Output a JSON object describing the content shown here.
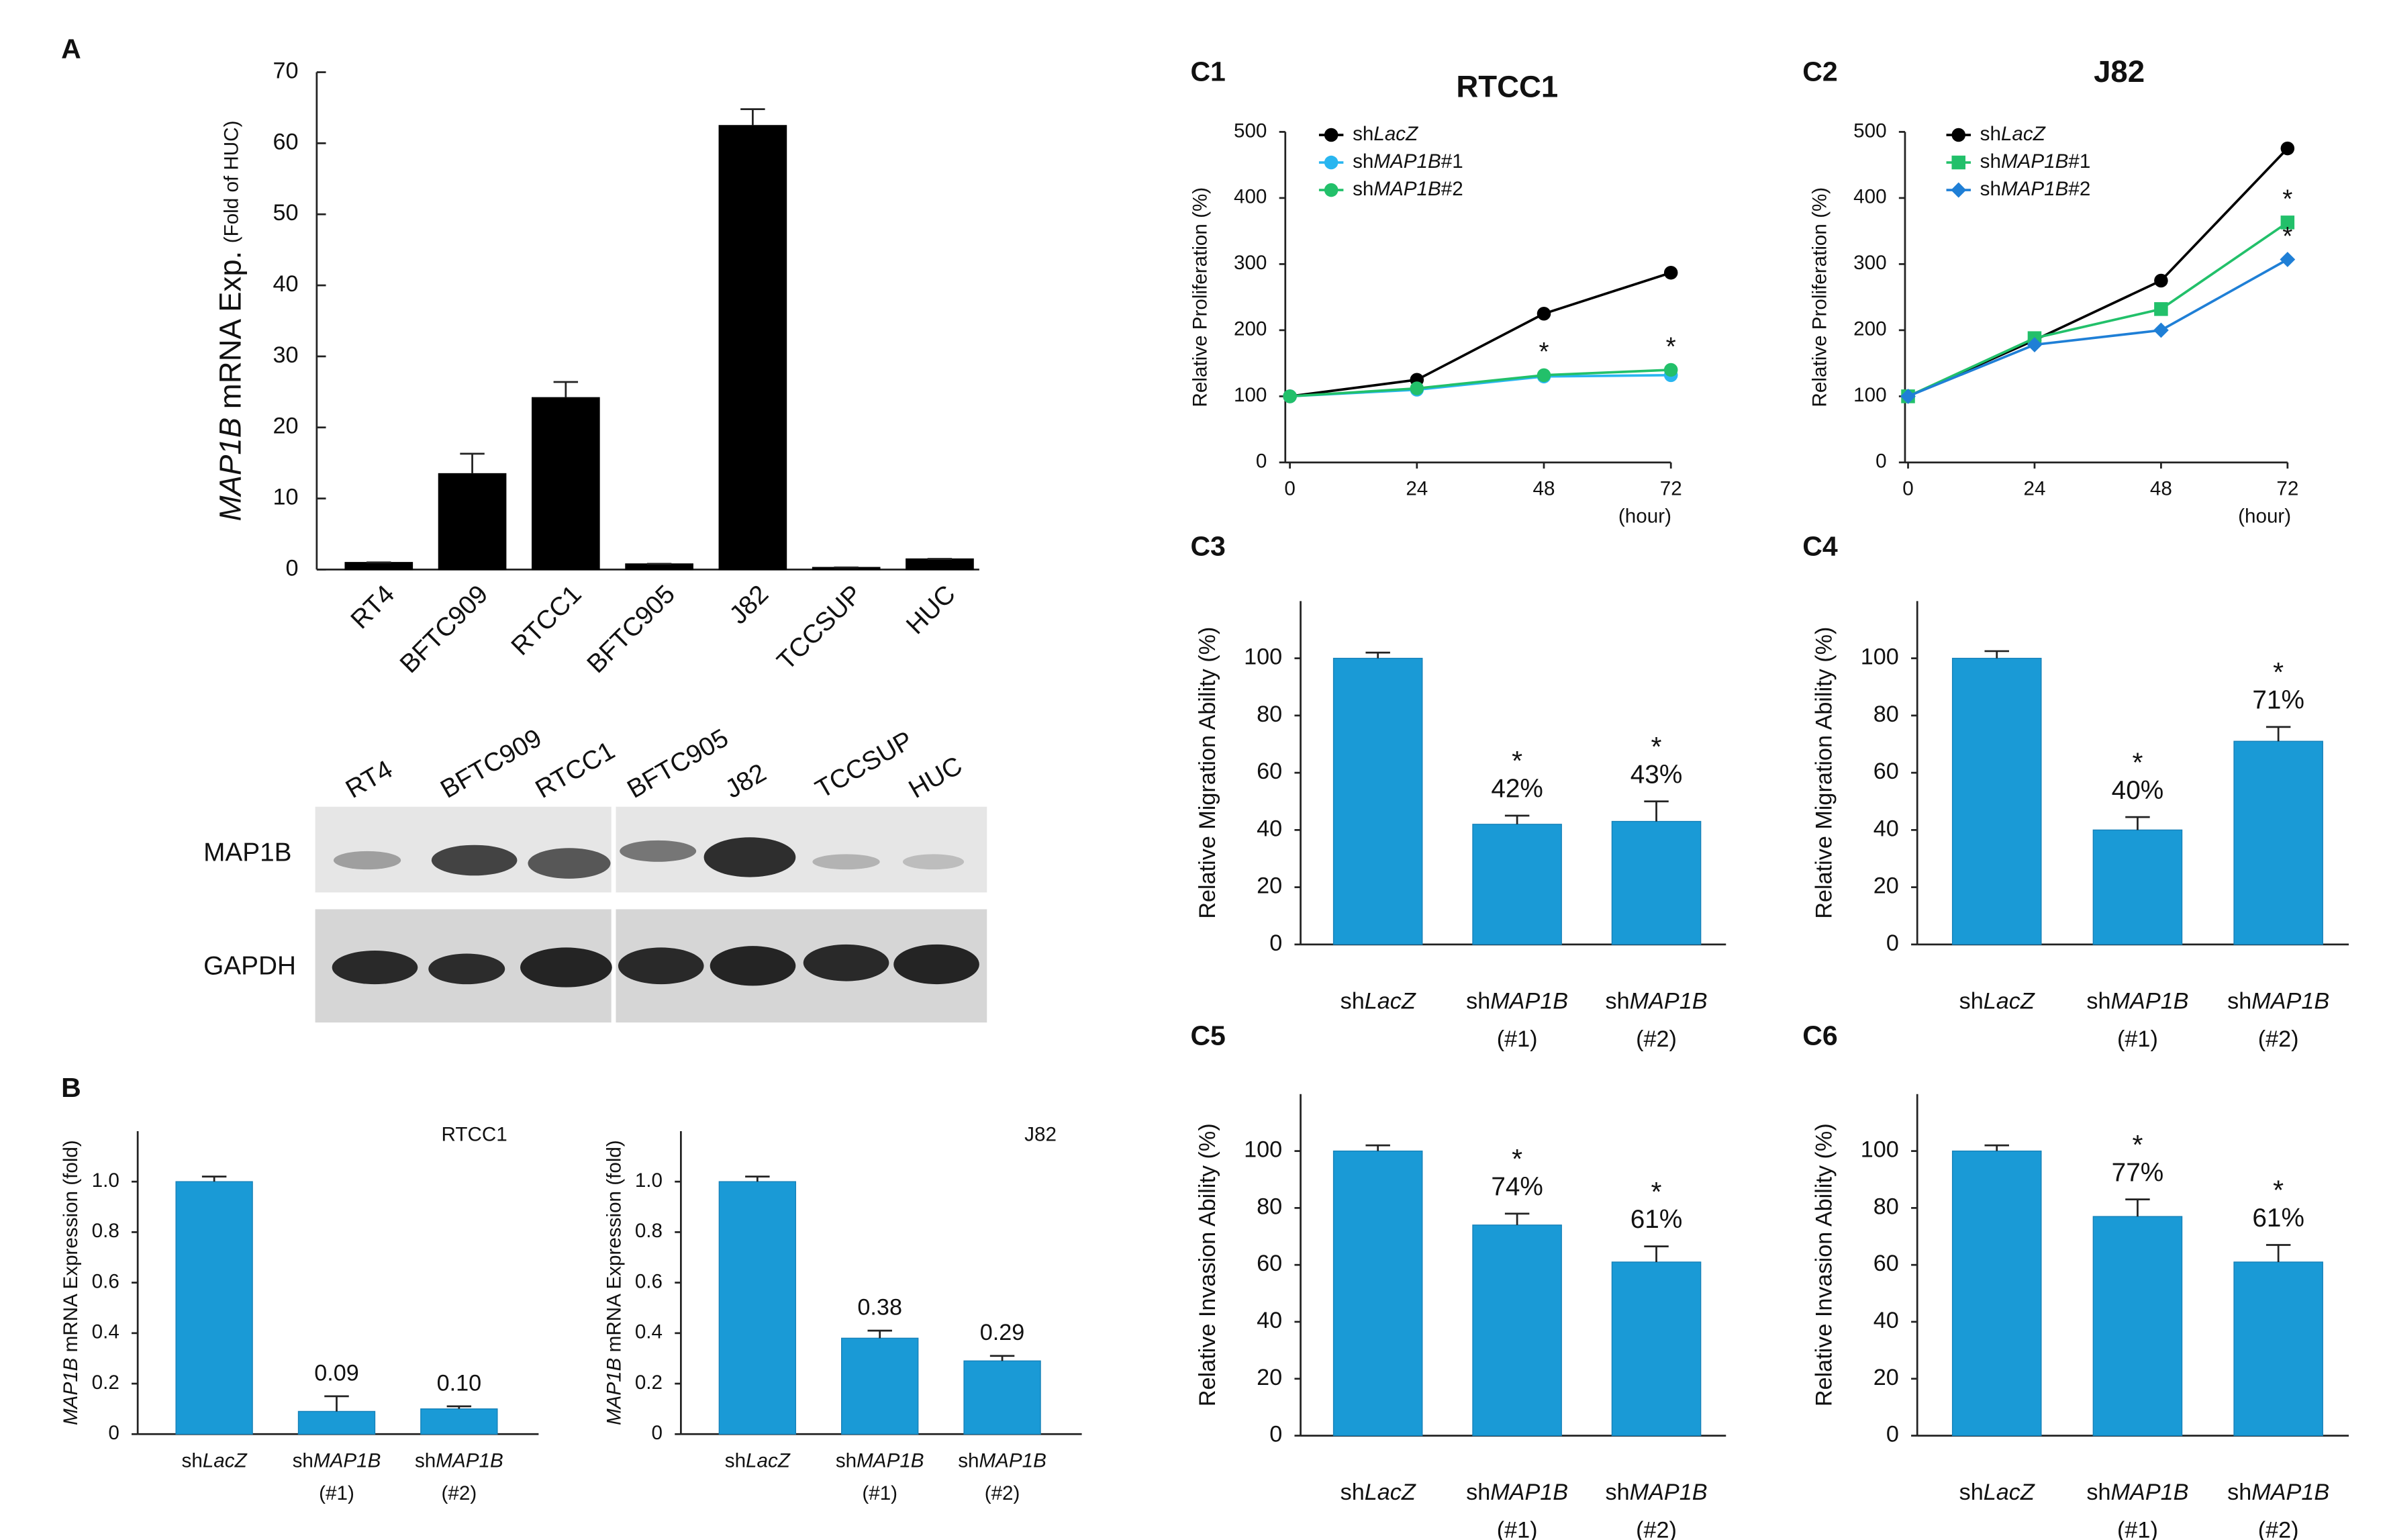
{
  "italic": [
    "MAP1B",
    "LacZ"
  ],
  "blot": {
    "lanes": [
      "RT4",
      "BFTC909",
      "RTCC1",
      "BFTC905",
      "J82",
      "TCCSUP",
      "HUC"
    ],
    "rows": [
      "MAP1B",
      "GAPDH"
    ]
  },
  "chart_data": [
    {
      "type": "bar",
      "panel": "A",
      "ylabel": "MAP1B mRNA Exp.",
      "ylabel_note": "(Fold of HUC)",
      "categories": [
        "RT4",
        "BFTC909",
        "RTCC1",
        "BFTC905",
        "J82",
        "TCCSUP",
        "HUC"
      ],
      "values": [
        1,
        13.5,
        24.2,
        0.8,
        62.5,
        0.3,
        1.5
      ],
      "errors": [
        0,
        2.8,
        2.2,
        0,
        2.3,
        0,
        0
      ],
      "color": "#000000",
      "ylim": [
        0,
        70
      ],
      "yticks": [
        0,
        10,
        20,
        30,
        40,
        50,
        60,
        70
      ]
    },
    {
      "type": "bar",
      "panel": "B",
      "title": "RTCC1",
      "ylabel": "MAP1B mRNA Expression (fold)",
      "categories": [
        "shLacZ",
        "shMAP1B (#1)",
        "shMAP1B (#2)"
      ],
      "values": [
        1.0,
        0.09,
        0.1
      ],
      "errors": [
        0.02,
        0.06,
        0.01
      ],
      "value_labels": [
        null,
        "0.09",
        "0.10"
      ],
      "color": "#1a9ad6",
      "ylim": [
        0,
        1.2
      ],
      "yticks": [
        0,
        0.2,
        0.4,
        0.6,
        0.8,
        {
          "value": 1,
          "label": "1.0"
        }
      ]
    },
    {
      "type": "bar",
      "title": "J82",
      "ylabel": "MAP1B mRNA Expression (fold)",
      "categories": [
        "shLacZ",
        "shMAP1B (#1)",
        "shMAP1B (#2)"
      ],
      "values": [
        1.0,
        0.38,
        0.29
      ],
      "errors": [
        0.02,
        0.03,
        0.02
      ],
      "value_labels": [
        null,
        "0.38",
        "0.29"
      ],
      "color": "#1a9ad6",
      "ylim": [
        0,
        1.2
      ],
      "yticks": [
        0,
        0.2,
        0.4,
        0.6,
        0.8,
        {
          "value": 1,
          "label": "1.0"
        }
      ]
    },
    {
      "type": "line",
      "panel": "C1",
      "title": "RTCC1",
      "ylabel": "Relative Proliferation (%)",
      "xlabel": "(hour)",
      "x": [
        0,
        24,
        48,
        72
      ],
      "xlim": [
        0,
        72
      ],
      "xticks": [
        0,
        24,
        48,
        72
      ],
      "ylim": [
        0,
        500
      ],
      "yticks": [
        0,
        100,
        200,
        300,
        400,
        500
      ],
      "series": [
        {
          "name": "shLacZ",
          "color": "#000000",
          "marker": "circle",
          "values": [
            100,
            125,
            225,
            287
          ]
        },
        {
          "name": "shMAP1B#1",
          "color": "#29b6f0",
          "marker": "circle",
          "values": [
            100,
            110,
            130,
            132
          ]
        },
        {
          "name": "shMAP1B#2",
          "color": "#22c06a",
          "marker": "circle",
          "values": [
            100,
            112,
            132,
            140
          ]
        }
      ],
      "annotations": [
        {
          "text": "*",
          "x": 48,
          "series": 2
        },
        {
          "text": "*",
          "x": 72,
          "series": 2
        }
      ]
    },
    {
      "type": "line",
      "panel": "C2",
      "title": "J82",
      "ylabel": "Relative Proliferation (%)",
      "xlabel": "(hour)",
      "x": [
        0,
        24,
        48,
        72
      ],
      "xlim": [
        0,
        72
      ],
      "xticks": [
        0,
        24,
        48,
        72
      ],
      "ylim": [
        0,
        500
      ],
      "yticks": [
        0,
        100,
        200,
        300,
        400,
        500
      ],
      "series": [
        {
          "name": "shLacZ",
          "color": "#000000",
          "marker": "circle",
          "values": [
            100,
            185,
            275,
            475
          ]
        },
        {
          "name": "shMAP1B#1",
          "color": "#22c06a",
          "marker": "square",
          "values": [
            100,
            188,
            232,
            363
          ]
        },
        {
          "name": "shMAP1B#2",
          "color": "#1f7fd6",
          "marker": "diamond",
          "values": [
            100,
            178,
            200,
            307
          ]
        }
      ],
      "annotations": [
        {
          "text": "*",
          "x": 72,
          "series": 1
        },
        {
          "text": "*",
          "x": 72,
          "series": 2
        }
      ]
    },
    {
      "type": "bar",
      "panel": "C3",
      "ylabel": "Relative Migration Ability (%)",
      "categories": [
        "shLacZ",
        "shMAP1B (#1)",
        "shMAP1B (#2)"
      ],
      "values": [
        100,
        42,
        43
      ],
      "errors": [
        2,
        3,
        7
      ],
      "value_labels": [
        null,
        "42%",
        "43%"
      ],
      "annotations": [
        {
          "text": "*",
          "index": 1
        },
        {
          "text": "*",
          "index": 2
        }
      ],
      "color": "#1a9ad6",
      "ylim": [
        0,
        120
      ],
      "yticks": [
        0,
        20,
        40,
        60,
        80,
        100
      ]
    },
    {
      "type": "bar",
      "panel": "C4",
      "ylabel": "Relative Migration Ability (%)",
      "categories": [
        "shLacZ",
        "shMAP1B (#1)",
        "shMAP1B (#2)"
      ],
      "values": [
        100,
        40,
        71
      ],
      "errors": [
        2.5,
        4.5,
        5
      ],
      "value_labels": [
        null,
        "40%",
        "71%"
      ],
      "annotations": [
        {
          "text": "*",
          "index": 1
        },
        {
          "text": "*",
          "index": 2
        }
      ],
      "color": "#1a9ad6",
      "ylim": [
        0,
        120
      ],
      "yticks": [
        0,
        20,
        40,
        60,
        80,
        100
      ]
    },
    {
      "type": "bar",
      "panel": "C5",
      "ylabel": "Relative Invasion Ability (%)",
      "categories": [
        "shLacZ",
        "shMAP1B (#1)",
        "shMAP1B (#2)"
      ],
      "values": [
        100,
        74,
        61
      ],
      "errors": [
        2,
        4,
        5.5
      ],
      "value_labels": [
        null,
        "74%",
        "61%"
      ],
      "annotations": [
        {
          "text": "*",
          "index": 1
        },
        {
          "text": "*",
          "index": 2
        }
      ],
      "color": "#1a9ad6",
      "ylim": [
        0,
        120
      ],
      "yticks": [
        0,
        20,
        40,
        60,
        80,
        100
      ]
    },
    {
      "type": "bar",
      "panel": "C6",
      "ylabel": "Relative Invasion Ability (%)",
      "categories": [
        "shLacZ",
        "shMAP1B (#1)",
        "shMAP1B (#2)"
      ],
      "values": [
        100,
        77,
        61
      ],
      "errors": [
        2,
        6,
        6
      ],
      "value_labels": [
        null,
        "77%",
        "61%"
      ],
      "annotations": [
        {
          "text": "*",
          "index": 1
        },
        {
          "text": "*",
          "index": 2
        }
      ],
      "color": "#1a9ad6",
      "ylim": [
        0,
        120
      ],
      "yticks": [
        0,
        20,
        40,
        60,
        80,
        100
      ]
    }
  ]
}
